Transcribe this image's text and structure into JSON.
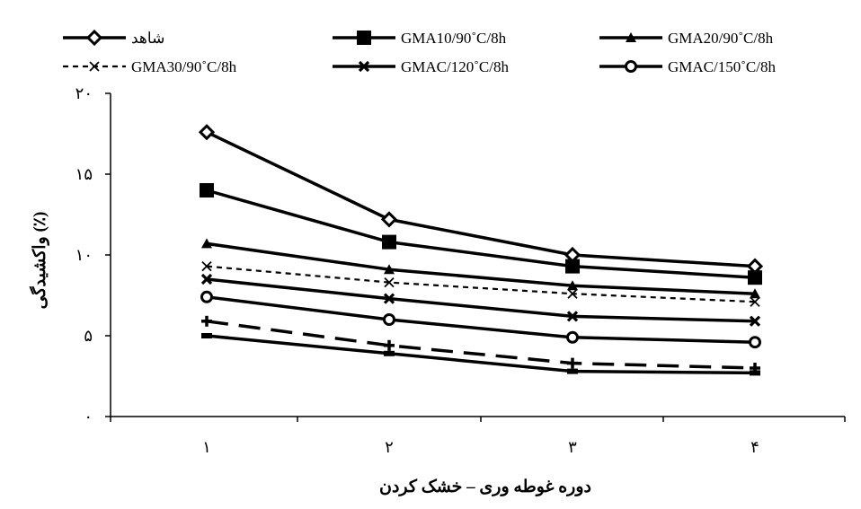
{
  "chart_data": {
    "type": "line",
    "title": "",
    "xlabel": "دوره غوطه وری – خشک کردن",
    "ylabel": "واکشیدگی (٪)",
    "categories": [
      "۱",
      "۲",
      "۳",
      "۴"
    ],
    "ylim": [
      0,
      20
    ],
    "yticks": [
      {
        "value": 0,
        "label": "۰"
      },
      {
        "value": 5,
        "label": "۵"
      },
      {
        "value": 10,
        "label": "۱۰"
      },
      {
        "value": 15,
        "label": "۱۵"
      },
      {
        "value": 20,
        "label": "۲۰"
      }
    ],
    "grid": false,
    "legend_position": "top",
    "series": [
      {
        "name": "شاهد",
        "values": [
          17.6,
          12.2,
          10.0,
          9.3
        ],
        "marker": "diamond",
        "dash": "solid"
      },
      {
        "name": "GMA10/90˚C/8h",
        "values": [
          14.0,
          10.8,
          9.3,
          8.6
        ],
        "marker": "square",
        "dash": "solid"
      },
      {
        "name": "GMA20/90˚C/8h",
        "values": [
          10.7,
          9.1,
          8.1,
          7.6
        ],
        "marker": "triangle",
        "dash": "solid"
      },
      {
        "name": "GMA30/90˚C/8h",
        "values": [
          9.3,
          8.3,
          7.6,
          7.1
        ],
        "marker": "x",
        "dash": "dash-small"
      },
      {
        "name": "GMAC/120˚C/8h",
        "values": [
          8.5,
          7.3,
          6.2,
          5.9
        ],
        "marker": "x-bold",
        "dash": "solid"
      },
      {
        "name": "GMAC/150˚C/8h",
        "values": [
          7.4,
          6.0,
          4.9,
          4.6
        ],
        "marker": "circle",
        "dash": "solid"
      },
      {
        "name": "",
        "values": [
          5.9,
          4.4,
          3.3,
          3.0
        ],
        "marker": "plus",
        "dash": "dash-long"
      },
      {
        "name": "",
        "values": [
          5.0,
          3.9,
          2.8,
          2.7
        ],
        "marker": "dash",
        "dash": "solid"
      }
    ]
  }
}
